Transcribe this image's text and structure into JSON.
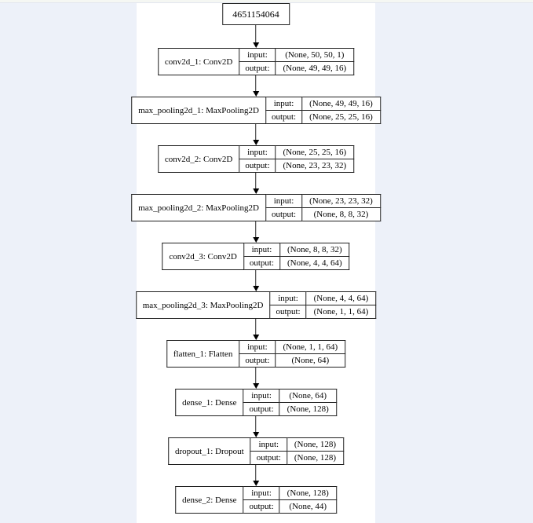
{
  "window": {
    "page_background": "#edf1f9",
    "canvas_background": "#ffffff",
    "top_strip_color": "#f5f7f3",
    "line_color": "#1f1f1f"
  },
  "diagram": {
    "model_id": "4651154064",
    "io_labels": {
      "input": "input:",
      "output": "output:"
    },
    "nodes": [
      {
        "name": "conv2d_1: Conv2D",
        "input_shape": "(None, 50, 50, 1)",
        "output_shape": "(None, 49, 49, 16)"
      },
      {
        "name": "max_pooling2d_1: MaxPooling2D",
        "input_shape": "(None, 49, 49, 16)",
        "output_shape": "(None, 25, 25, 16)"
      },
      {
        "name": "conv2d_2: Conv2D",
        "input_shape": "(None, 25, 25, 16)",
        "output_shape": "(None, 23, 23, 32)"
      },
      {
        "name": "max_pooling2d_2: MaxPooling2D",
        "input_shape": "(None, 23, 23, 32)",
        "output_shape": "(None, 8, 8, 32)"
      },
      {
        "name": "conv2d_3: Conv2D",
        "input_shape": "(None, 8, 8, 32)",
        "output_shape": "(None, 4, 4, 64)"
      },
      {
        "name": "max_pooling2d_3: MaxPooling2D",
        "input_shape": "(None, 4, 4, 64)",
        "output_shape": "(None, 1, 1, 64)"
      },
      {
        "name": "flatten_1: Flatten",
        "input_shape": "(None, 1, 1, 64)",
        "output_shape": "(None, 64)"
      },
      {
        "name": "dense_1: Dense",
        "input_shape": "(None, 64)",
        "output_shape": "(None, 128)"
      },
      {
        "name": "dropout_1: Dropout",
        "input_shape": "(None, 128)",
        "output_shape": "(None, 128)"
      },
      {
        "name": "dense_2: Dense",
        "input_shape": "(None, 128)",
        "output_shape": "(None, 44)"
      }
    ]
  }
}
